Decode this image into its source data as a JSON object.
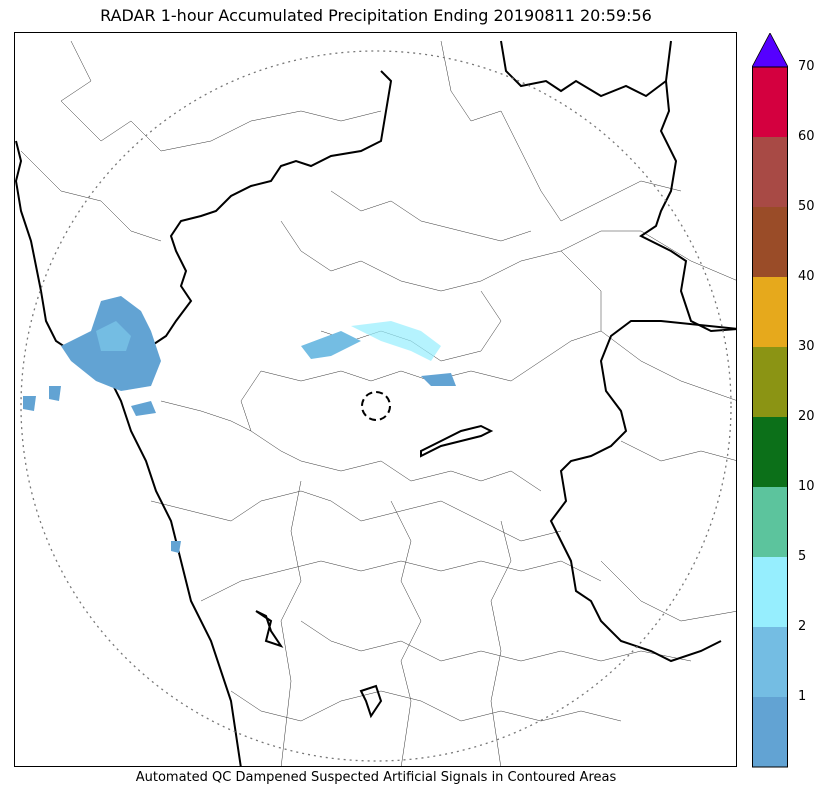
{
  "title": "RADAR 1-hour Accumulated Precipitation Ending 20190811 20:59:56",
  "caption": "Automated QC Dampened Suspected Artificial Signals in Contoured Areas",
  "colorbar": {
    "levels": [
      {
        "label": "",
        "color": "#62a3d3"
      },
      {
        "label": "1",
        "color": "#74bde3"
      },
      {
        "label": "2",
        "color": "#96eefe"
      },
      {
        "label": "5",
        "color": "#5cc49d"
      },
      {
        "label": "10",
        "color": "#0c7019"
      },
      {
        "label": "20",
        "color": "#8b9414"
      },
      {
        "label": "30",
        "color": "#e6a91c"
      },
      {
        "label": "40",
        "color": "#9a4c28"
      },
      {
        "label": "50",
        "color": "#a84a45"
      },
      {
        "label": "60",
        "color": "#d4003f"
      }
    ],
    "top_label": "70",
    "extend_color": "#5500ff"
  },
  "map": {
    "range_ring": "dotted",
    "radar_marker": "dashed-circle"
  }
}
